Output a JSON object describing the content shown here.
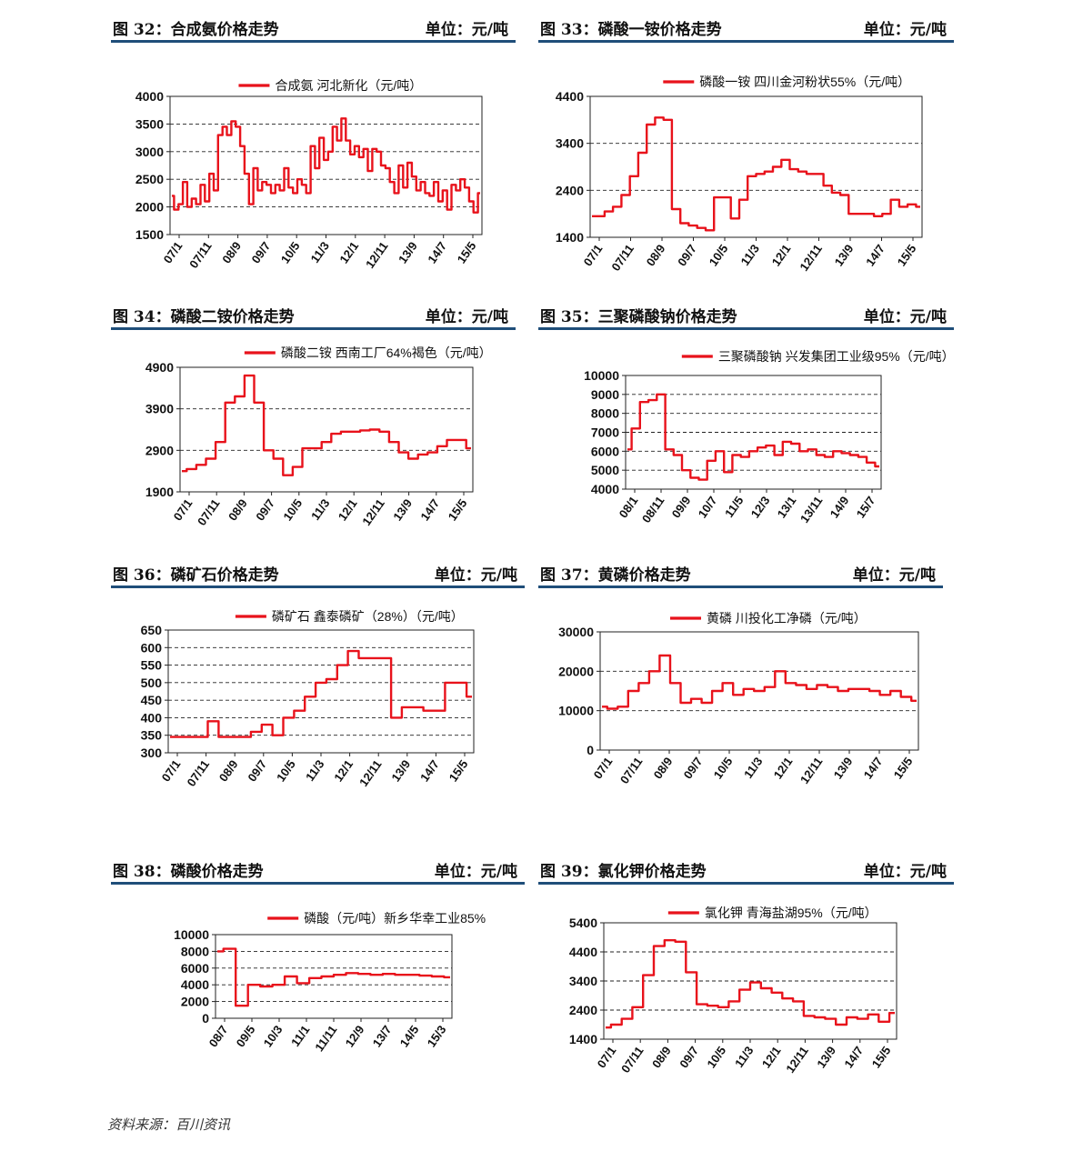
{
  "source": "资料来源：百川资讯",
  "chart_data": [
    {
      "id": "fig32",
      "type": "line",
      "fig_title": "图 32：合成氨价格走势",
      "unit": "单位：元/吨",
      "legend": "合成氨 河北新化（元/吨）",
      "yticks": [
        "4000",
        "3500",
        "3000",
        "2500",
        "2000",
        "1500"
      ],
      "ylim": [
        1500,
        4000
      ],
      "xticks": [
        "07/1",
        "07/11",
        "08/9",
        "09/7",
        "10/5",
        "11/3",
        "12/1",
        "12/11",
        "13/9",
        "14/7",
        "15/5"
      ],
      "color": "#e8121b",
      "series": [
        {
          "name": "合成氨 河北新化（元/吨）",
          "values": [
            2200,
            1950,
            2050,
            2450,
            2000,
            2150,
            2050,
            2400,
            2100,
            2600,
            2300,
            3300,
            3450,
            3300,
            3550,
            3450,
            3100,
            2600,
            2050,
            2700,
            2300,
            2450,
            2400,
            2250,
            2400,
            2300,
            2700,
            2350,
            2250,
            2500,
            2400,
            2250,
            3100,
            2700,
            3250,
            2850,
            3000,
            3450,
            3200,
            3600,
            3200,
            2950,
            3100,
            2900,
            3050,
            2650,
            3050,
            3000,
            2750,
            2700,
            2450,
            2250,
            2750,
            2350,
            2800,
            2550,
            2300,
            2450,
            2250,
            2200,
            2450,
            2100,
            2300,
            1950,
            2400,
            2300,
            2500,
            2350,
            2100,
            1900,
            2250
          ]
        }
      ]
    },
    {
      "id": "fig33",
      "type": "line",
      "fig_title": "图 33：磷酸一铵价格走势",
      "unit": "单位：元/吨",
      "legend": "磷酸一铵 四川金河粉状55%（元/吨）",
      "yticks": [
        "4400",
        "3400",
        "2400",
        "1400"
      ],
      "ylim": [
        1400,
        4400
      ],
      "xticks": [
        "07/1",
        "07/11",
        "08/9",
        "09/7",
        "10/5",
        "11/3",
        "12/1",
        "12/11",
        "13/9",
        "14/7",
        "15/5"
      ],
      "color": "#e8121b",
      "series": [
        {
          "name": "磷酸一铵 四川金河粉状55%（元/吨）",
          "values": [
            1850,
            1850,
            1950,
            2050,
            2300,
            2700,
            3200,
            3800,
            3950,
            3900,
            2000,
            1700,
            1650,
            1600,
            1550,
            2250,
            2250,
            1800,
            2200,
            2700,
            2750,
            2800,
            2900,
            3050,
            2850,
            2800,
            2750,
            2750,
            2500,
            2350,
            2300,
            1900,
            1900,
            1900,
            1850,
            1900,
            2200,
            2050,
            2100,
            2050
          ]
        }
      ]
    },
    {
      "id": "fig34",
      "type": "line",
      "fig_title": "图 34：磷酸二铵价格走势",
      "unit": "单位：元/吨",
      "legend": "磷酸二铵 西南工厂64%褐色（元/吨）",
      "yticks": [
        "4900",
        "3900",
        "2900",
        "1900"
      ],
      "ylim": [
        1900,
        4900
      ],
      "xticks": [
        "07/1",
        "07/11",
        "08/9",
        "09/7",
        "10/5",
        "11/3",
        "12/1",
        "12/11",
        "13/9",
        "14/7",
        "15/5"
      ],
      "color": "#e8121b",
      "series": [
        {
          "name": "磷酸二铵 西南工厂64%褐色（元/吨）",
          "values": [
            2400,
            2450,
            2550,
            2700,
            3100,
            4050,
            4200,
            4700,
            4050,
            2900,
            2700,
            2300,
            2500,
            2950,
            2950,
            3100,
            3300,
            3350,
            3350,
            3380,
            3400,
            3350,
            3100,
            2850,
            2700,
            2800,
            2850,
            3000,
            3150,
            3150,
            2950
          ]
        }
      ]
    },
    {
      "id": "fig35",
      "type": "line",
      "fig_title": "图 35：三聚磷酸钠价格走势",
      "unit": "单位：元/吨",
      "legend": "三聚磷酸钠 兴发集团工业级95%（元/吨）",
      "yticks": [
        "10000",
        "9000",
        "8000",
        "7000",
        "6000",
        "5000",
        "4000"
      ],
      "ylim": [
        4000,
        10000
      ],
      "xticks": [
        "08/1",
        "08/11",
        "09/9",
        "10/7",
        "11/5",
        "12/3",
        "13/1",
        "13/11",
        "14/9",
        "15/7"
      ],
      "color": "#e8121b",
      "series": [
        {
          "name": "三聚磷酸钠 兴发集团工业级95%（元/吨）",
          "values": [
            6100,
            7200,
            8600,
            8700,
            9000,
            6100,
            5800,
            5000,
            4600,
            4500,
            5500,
            6000,
            4900,
            5800,
            5700,
            6000,
            6200,
            6300,
            5800,
            6500,
            6400,
            6000,
            6100,
            5800,
            5700,
            6000,
            5900,
            5800,
            5700,
            5400,
            5200
          ]
        }
      ]
    },
    {
      "id": "fig36",
      "type": "line",
      "fig_title": "图 36：磷矿石价格走势",
      "unit": "单位：元/吨",
      "legend": "磷矿石 鑫泰磷矿（28%）（元/吨）",
      "yticks": [
        "650",
        "600",
        "550",
        "500",
        "450",
        "400",
        "350",
        "300"
      ],
      "ylim": [
        300,
        650
      ],
      "xticks": [
        "07/1",
        "07/11",
        "08/9",
        "09/7",
        "10/5",
        "11/3",
        "12/1",
        "12/11",
        "13/9",
        "14/7",
        "15/5"
      ],
      "color": "#e8121b",
      "series": [
        {
          "name": "磷矿石 鑫泰磷矿（28%）（元/吨）",
          "values": [
            345,
            345,
            345,
            345,
            390,
            345,
            345,
            345,
            360,
            380,
            350,
            400,
            420,
            460,
            500,
            510,
            550,
            590,
            570,
            570,
            570,
            400,
            430,
            430,
            420,
            420,
            500,
            500,
            460
          ]
        }
      ]
    },
    {
      "id": "fig37",
      "type": "line",
      "fig_title": "图 37：黄磷价格走势",
      "unit": "单位：元/吨",
      "legend": "黄磷 川投化工净磷（元/吨）",
      "yticks": [
        "30000",
        "20000",
        "10000",
        "0"
      ],
      "ylim": [
        0,
        30000
      ],
      "xticks": [
        "07/1",
        "07/11",
        "08/9",
        "09/7",
        "10/5",
        "11/3",
        "12/1",
        "12/11",
        "13/9",
        "14/7",
        "15/5"
      ],
      "color": "#e8121b",
      "series": [
        {
          "name": "黄磷 川投化工净磷（元/吨）",
          "values": [
            11000,
            10500,
            11000,
            15000,
            17000,
            20000,
            24000,
            17000,
            12000,
            13000,
            12000,
            15000,
            17000,
            14000,
            15500,
            15000,
            16000,
            20000,
            17000,
            16500,
            15500,
            16500,
            16000,
            15000,
            15500,
            15500,
            15000,
            14000,
            15000,
            13500,
            12500
          ]
        }
      ]
    },
    {
      "id": "fig38",
      "type": "line",
      "fig_title": "图 38：磷酸价格走势",
      "unit": "单位：元/吨",
      "legend": "磷酸（元/吨）新乡华幸工业85%",
      "yticks": [
        "10000",
        "8000",
        "6000",
        "4000",
        "2000",
        "0"
      ],
      "ylim": [
        0,
        10000
      ],
      "xticks": [
        "08/7",
        "09/5",
        "10/3",
        "11/1",
        "11/11",
        "12/9",
        "13/7",
        "14/5",
        "15/3"
      ],
      "color": "#e8121b",
      "series": [
        {
          "name": "磷酸（元/吨）新乡华幸工业85%",
          "values": [
            8000,
            8300,
            1500,
            4000,
            3800,
            4000,
            5000,
            4200,
            4800,
            5000,
            5200,
            5400,
            5300,
            5200,
            5300,
            5200,
            5200,
            5100,
            5000,
            4900
          ]
        }
      ]
    },
    {
      "id": "fig39",
      "type": "line",
      "fig_title": "图 39：氯化钾价格走势",
      "unit": "单位：元/吨",
      "legend": "氯化钾 青海盐湖95%（元/吨）",
      "yticks": [
        "5400",
        "4400",
        "3400",
        "2400",
        "1400"
      ],
      "ylim": [
        1400,
        5400
      ],
      "xticks": [
        "07/1",
        "07/11",
        "08/9",
        "09/7",
        "10/5",
        "11/3",
        "12/1",
        "12/11",
        "13/9",
        "14/7",
        "15/5"
      ],
      "color": "#e8121b",
      "series": [
        {
          "name": "氯化钾 青海盐湖95%（元/吨）",
          "values": [
            1800,
            1900,
            2100,
            2500,
            3600,
            4600,
            4800,
            4750,
            3700,
            2600,
            2550,
            2500,
            2700,
            3100,
            3350,
            3150,
            3000,
            2800,
            2700,
            2200,
            2150,
            2100,
            1900,
            2150,
            2100,
            2250,
            2000,
            2300
          ]
        }
      ]
    }
  ]
}
